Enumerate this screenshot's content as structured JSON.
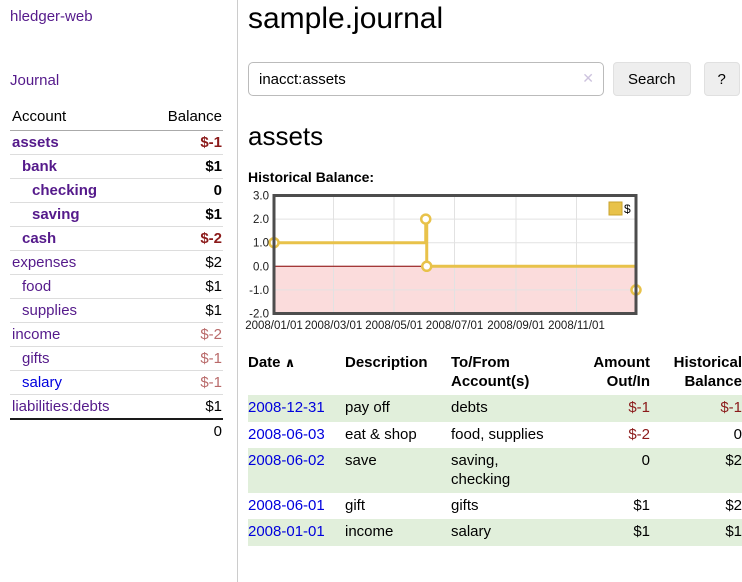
{
  "brand": "hledger-web",
  "nav": {
    "journal": "Journal"
  },
  "colors": {
    "link_purple": "#551a8b",
    "link_blue": "#0000dd",
    "negative_strong": "#8b1a1a",
    "negative_dim": "#b96a6a",
    "row_green": "#e1efdb"
  },
  "sidebar": {
    "header": {
      "account": "Account",
      "balance": "Balance"
    },
    "rows": [
      {
        "name": "assets",
        "balance": "$-1",
        "depth": 0,
        "bold": true,
        "neg": "strong",
        "blue": false
      },
      {
        "name": "bank",
        "balance": "$1",
        "depth": 1,
        "bold": true,
        "neg": null,
        "blue": false
      },
      {
        "name": "checking",
        "balance": "0",
        "depth": 2,
        "bold": true,
        "neg": null,
        "blue": false
      },
      {
        "name": "saving",
        "balance": "$1",
        "depth": 2,
        "bold": true,
        "neg": null,
        "blue": false
      },
      {
        "name": "cash",
        "balance": "$-2",
        "depth": 1,
        "bold": true,
        "neg": "strong",
        "blue": false
      },
      {
        "name": "expenses",
        "balance": "$2",
        "depth": 0,
        "bold": false,
        "neg": null,
        "blue": false
      },
      {
        "name": "food",
        "balance": "$1",
        "depth": 1,
        "bold": false,
        "neg": null,
        "blue": false
      },
      {
        "name": "supplies",
        "balance": "$1",
        "depth": 1,
        "bold": false,
        "neg": null,
        "blue": false
      },
      {
        "name": "income",
        "balance": "$-2",
        "depth": 0,
        "bold": false,
        "neg": "dim",
        "blue": false
      },
      {
        "name": "gifts",
        "balance": "$-1",
        "depth": 1,
        "bold": false,
        "neg": "dim",
        "blue": false
      },
      {
        "name": "salary",
        "balance": "$-1",
        "depth": 1,
        "bold": false,
        "neg": "dim",
        "blue": true
      },
      {
        "name": "liabilities:debts",
        "balance": "$1",
        "depth": 0,
        "bold": false,
        "neg": null,
        "blue": false
      }
    ],
    "total": "0"
  },
  "main": {
    "title": "sample.journal"
  },
  "search": {
    "value": "inacct:assets",
    "clear_icon": "✕",
    "search_button": "Search",
    "help_button": "?"
  },
  "register": {
    "heading": "assets",
    "chart_label": "Historical Balance:",
    "table": {
      "headers": [
        "Date",
        "Description",
        "To/From Account(s)",
        "Amount Out/In",
        "Historical Balance"
      ],
      "sort_icon": "∧",
      "rows": [
        {
          "date": "2008-12-31",
          "description": "pay off",
          "accounts": "debts",
          "amount": "$-1",
          "amount_negative": true,
          "balance": "$-1",
          "balance_negative": true
        },
        {
          "date": "2008-06-03",
          "description": "eat & shop",
          "accounts": "food, supplies",
          "amount": "$-2",
          "amount_negative": true,
          "balance": "0",
          "balance_negative": false
        },
        {
          "date": "2008-06-02",
          "description": "save",
          "accounts": "saving, checking",
          "amount": "0",
          "amount_negative": false,
          "balance": "$2",
          "balance_negative": false
        },
        {
          "date": "2008-06-01",
          "description": "gift",
          "accounts": "gifts",
          "amount": "$1",
          "amount_negative": false,
          "balance": "$2",
          "balance_negative": false
        },
        {
          "date": "2008-01-01",
          "description": "income",
          "accounts": "salary",
          "amount": "$1",
          "amount_negative": false,
          "balance": "$1",
          "balance_negative": false
        }
      ]
    }
  },
  "chart_data": {
    "type": "line",
    "title": "Historical Balance",
    "step": true,
    "series": [
      {
        "name": "$",
        "x": [
          "2008-01-01",
          "2008-06-02",
          "2008-06-03",
          "2008-12-31"
        ],
        "y": [
          1,
          2,
          0,
          -1
        ]
      }
    ],
    "xlim": [
      "2008-01-01",
      "2008-12-31"
    ],
    "ylim": [
      -2,
      3
    ],
    "yticks": [
      "3.0",
      "2.0",
      "1.0",
      "0.0",
      "-1.0",
      "-2.0"
    ],
    "xticks": [
      "2008/01/01",
      "2008/03/01",
      "2008/05/01",
      "2008/07/01",
      "2008/09/01",
      "2008/11/01"
    ],
    "grid": true,
    "legend": {
      "label": "$",
      "position": "top-right"
    },
    "line_color": "#e8c24a",
    "marker_fill": "#ffffff",
    "negative_fill": "#fbdcdc",
    "zero_line_color": "#8b0000",
    "grid_color": "#e2e2e2",
    "border_color": "#4d4d4d"
  }
}
